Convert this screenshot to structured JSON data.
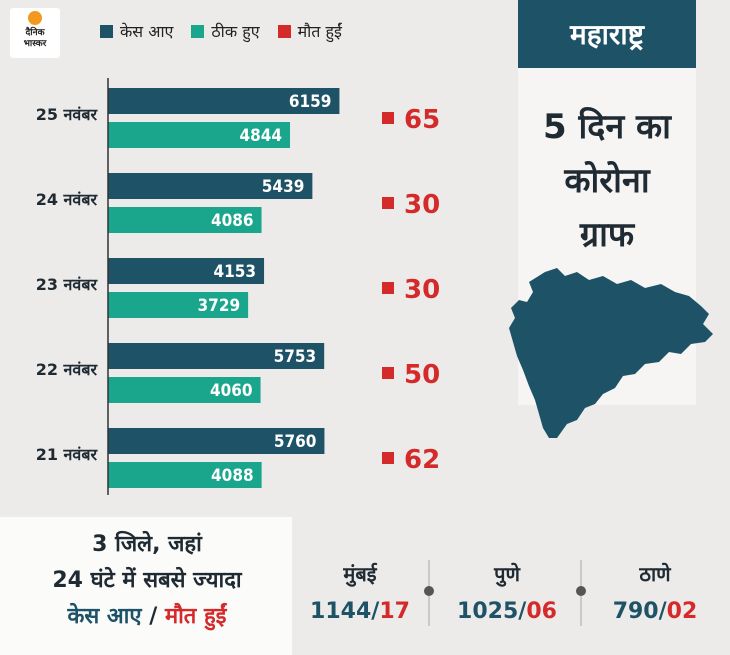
{
  "brand": {
    "line1": "दैनिक",
    "line2": "भास्कर"
  },
  "legend": [
    {
      "label": "केस आए",
      "color": "#1e5266"
    },
    {
      "label": "ठीक हुए",
      "color": "#1aa68c"
    },
    {
      "label": "मौत हुईं",
      "color": "#d42a2a"
    }
  ],
  "colors": {
    "cases": "#1e5266",
    "recovered": "#1aa68c",
    "deaths": "#d42a2a"
  },
  "side": {
    "state": "महाराष्ट्र",
    "title_lines": [
      "5 दिन का",
      "कोरोना",
      "ग्राफ"
    ]
  },
  "chart_data": {
    "type": "bar",
    "orientation": "horizontal",
    "categories": [
      "25 नवंबर",
      "24 नवंबर",
      "23 नवंबर",
      "22 नवंबर",
      "21 नवंबर"
    ],
    "series": [
      {
        "name": "केस आए",
        "values": [
          6159,
          5439,
          4153,
          5753,
          5760
        ]
      },
      {
        "name": "ठीक हुए",
        "values": [
          4844,
          4086,
          3729,
          4060,
          4088
        ]
      },
      {
        "name": "मौत हुईं",
        "values": [
          65,
          30,
          30,
          50,
          62
        ]
      }
    ],
    "xlim": [
      0,
      6600
    ],
    "grid": false,
    "legend": "top"
  },
  "bottom": {
    "line1": "3 जिले, जहां",
    "line2": "24 घंटे में सबसे ज्यादा",
    "line3_cases": "केस आए",
    "line3_sep": " / ",
    "line3_deaths": "मौत हुईं",
    "cities": [
      {
        "name": "मुंबई",
        "cases": "1144",
        "deaths": "17"
      },
      {
        "name": "पुणे",
        "cases": "1025",
        "deaths": "06"
      },
      {
        "name": "ठाणे",
        "cases": "790",
        "deaths": "02"
      }
    ],
    "slash": "/"
  }
}
